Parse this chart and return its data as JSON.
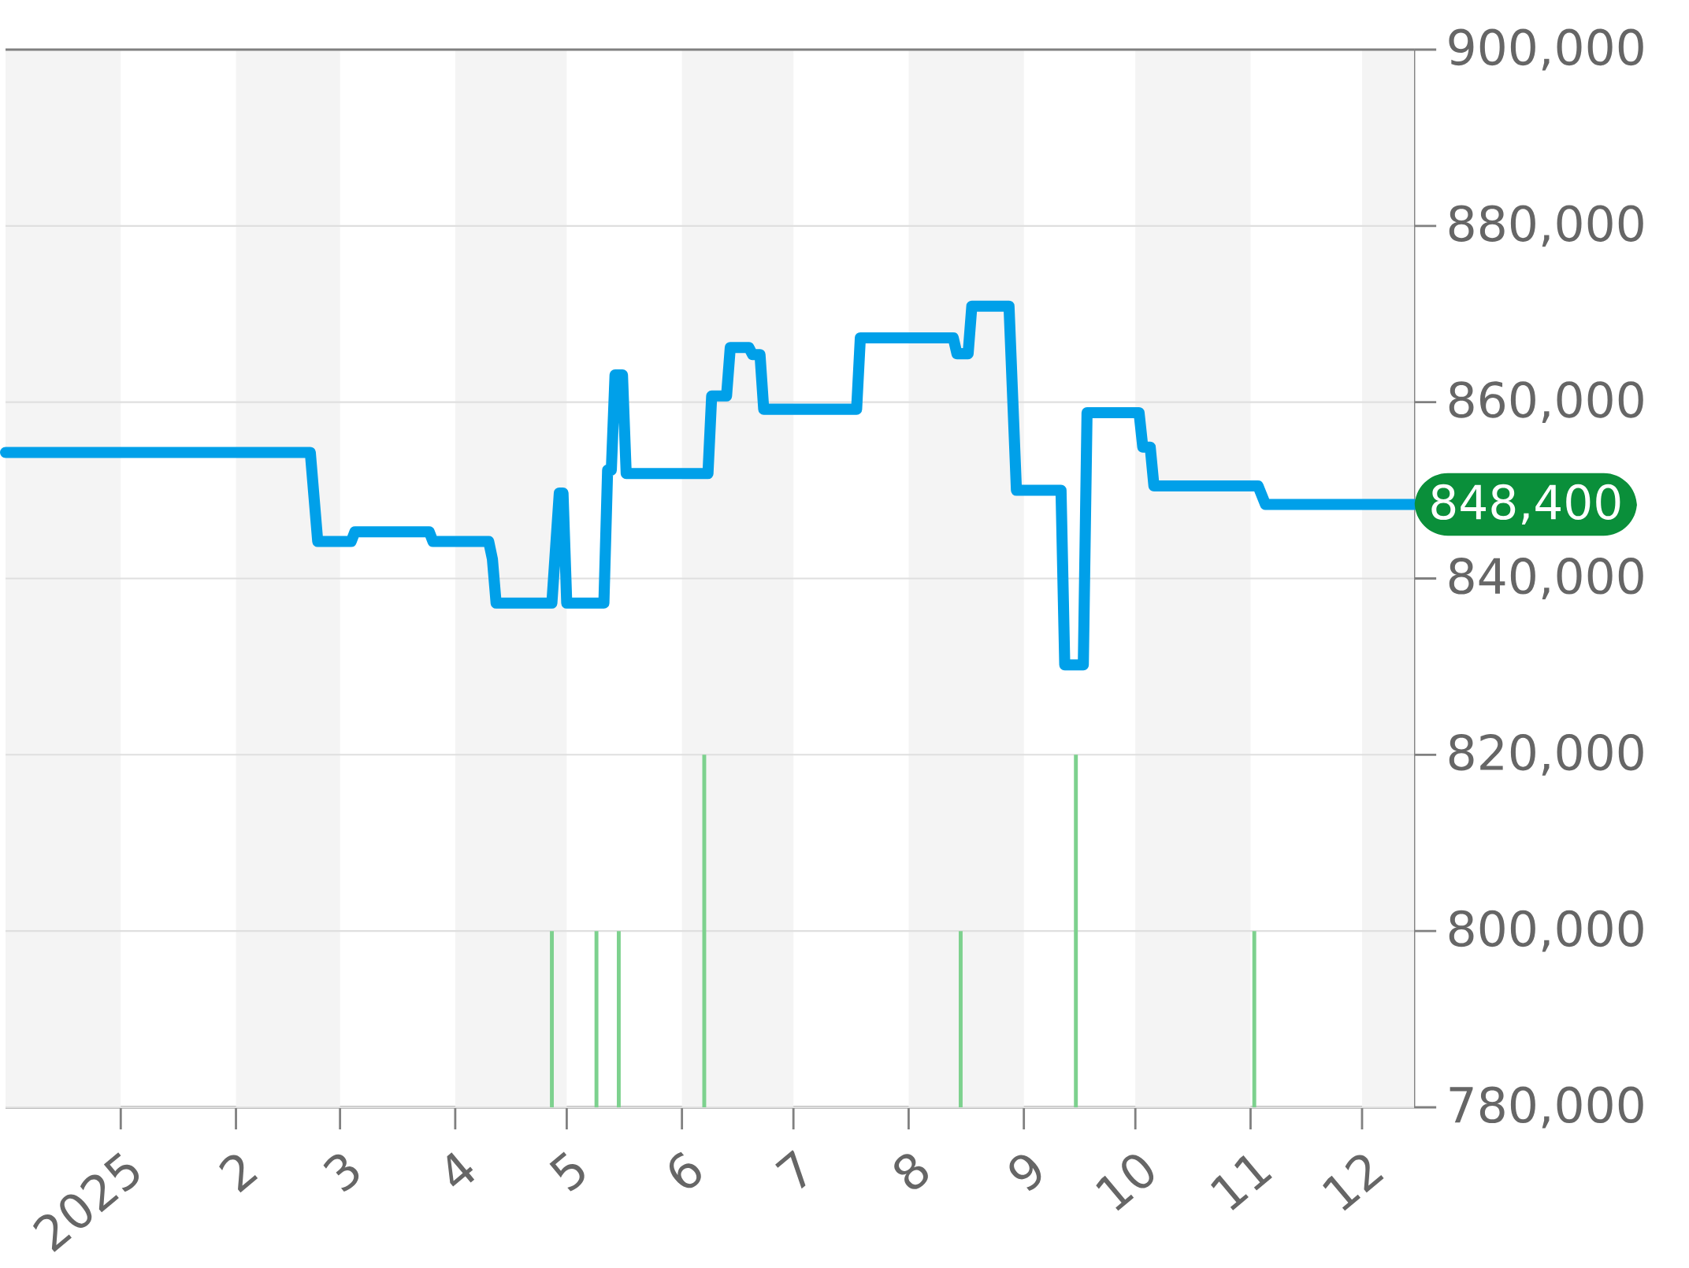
{
  "chart_data": {
    "type": "line",
    "xlim": [
      "2024-12-01",
      "2025-12-15"
    ],
    "ylim": [
      780000,
      900000
    ],
    "xticks": [
      {
        "value": "2025-01-01",
        "label": "2025"
      },
      {
        "value": "2025-02-01",
        "label": "2"
      },
      {
        "value": "2025-03-01",
        "label": "3"
      },
      {
        "value": "2025-04-01",
        "label": "4"
      },
      {
        "value": "2025-05-01",
        "label": "5"
      },
      {
        "value": "2025-06-01",
        "label": "6"
      },
      {
        "value": "2025-07-01",
        "label": "7"
      },
      {
        "value": "2025-08-01",
        "label": "8"
      },
      {
        "value": "2025-09-01",
        "label": "9"
      },
      {
        "value": "2025-10-01",
        "label": "10"
      },
      {
        "value": "2025-11-01",
        "label": "11"
      },
      {
        "value": "2025-12-01",
        "label": "12"
      }
    ],
    "yticks": [
      {
        "value": 780000,
        "label": "780,000"
      },
      {
        "value": 800000,
        "label": "800,000"
      },
      {
        "value": 820000,
        "label": "820,000"
      },
      {
        "value": 840000,
        "label": "840,000"
      },
      {
        "value": 860000,
        "label": "860,000"
      },
      {
        "value": 880000,
        "label": "880,000"
      },
      {
        "value": 900000,
        "label": "900,000"
      }
    ],
    "grid": "y",
    "series": [
      {
        "color": "#00a0e9",
        "x": [
          "2024-12-01",
          "2025-02-21",
          "2025-02-23",
          "2025-03-04",
          "2025-03-05",
          "2025-03-25",
          "2025-03-26",
          "2025-04-10",
          "2025-04-11",
          "2025-04-12",
          "2025-04-27",
          "2025-04-29",
          "2025-04-30",
          "2025-05-01",
          "2025-05-11",
          "2025-05-12",
          "2025-05-13",
          "2025-05-14",
          "2025-05-16",
          "2025-05-17",
          "2025-06-08",
          "2025-06-09",
          "2025-06-13",
          "2025-06-14",
          "2025-06-19",
          "2025-06-20",
          "2025-06-22",
          "2025-06-23",
          "2025-07-18",
          "2025-07-19",
          "2025-08-13",
          "2025-08-14",
          "2025-08-17",
          "2025-08-18",
          "2025-08-28",
          "2025-08-30",
          "2025-09-11",
          "2025-09-12",
          "2025-09-17",
          "2025-09-18",
          "2025-10-02",
          "2025-10-03",
          "2025-10-05",
          "2025-10-06",
          "2025-11-03",
          "2025-11-05",
          "2025-12-15"
        ],
        "values": [
          854300,
          854300,
          844200,
          844200,
          845300,
          845300,
          844200,
          844200,
          842200,
          837200,
          837200,
          849700,
          849700,
          837200,
          837200,
          852300,
          852300,
          863100,
          863100,
          851900,
          851900,
          860700,
          860700,
          866200,
          866200,
          865400,
          865400,
          859200,
          859200,
          867300,
          867300,
          865500,
          865500,
          870900,
          870900,
          850000,
          850000,
          830200,
          830200,
          858800,
          858800,
          854900,
          854900,
          850500,
          850500,
          848400,
          848400
        ]
      },
      {
        "type": "bar",
        "color": "#7dd18e",
        "x": [
          "2025-04-27",
          "2025-05-09",
          "2025-05-15",
          "2025-06-07",
          "2025-08-15",
          "2025-09-15",
          "2025-11-02"
        ],
        "base": [
          780000,
          780000,
          780000,
          780000,
          780000,
          780000,
          780000
        ],
        "values": [
          20000,
          20000,
          20000,
          40000,
          20000,
          40000,
          20000
        ]
      }
    ],
    "bands": [
      {
        "axis": "x",
        "from": "2024-12-01",
        "to": "2025-01-01",
        "color": "#f4f4f4"
      },
      {
        "axis": "x",
        "from": "2025-02-01",
        "to": "2025-03-01",
        "color": "#f4f4f4"
      },
      {
        "axis": "x",
        "from": "2025-04-01",
        "to": "2025-05-01",
        "color": "#f4f4f4"
      },
      {
        "axis": "x",
        "from": "2025-06-01",
        "to": "2025-07-01",
        "color": "#f4f4f4"
      },
      {
        "axis": "x",
        "from": "2025-08-01",
        "to": "2025-09-01",
        "color": "#f4f4f4"
      },
      {
        "axis": "x",
        "from": "2025-10-01",
        "to": "2025-11-01",
        "color": "#f4f4f4"
      },
      {
        "axis": "x",
        "from": "2025-12-01",
        "to": "2025-12-15",
        "color": "#f4f4f4"
      }
    ],
    "annotations": [
      {
        "text": "848,400",
        "x": "2025-12-15",
        "y": 848400
      }
    ]
  }
}
